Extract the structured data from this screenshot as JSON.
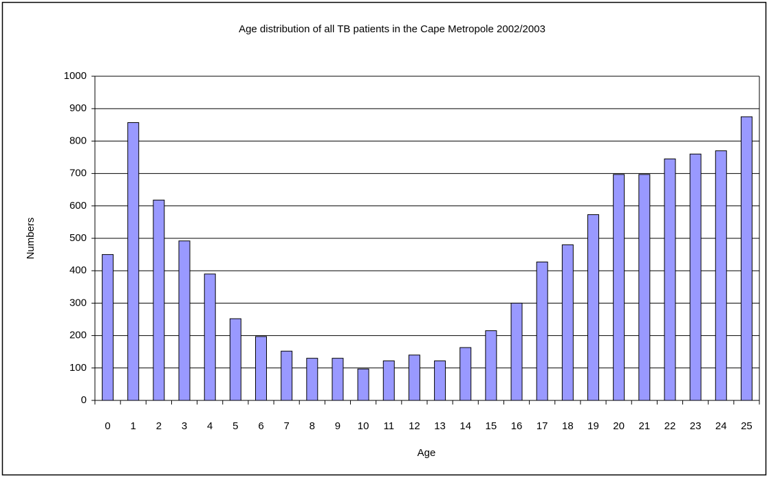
{
  "chart_data": {
    "type": "bar",
    "title": "Age distribution of all TB patients in the Cape Metropole 2002/2003",
    "x_label": "Age",
    "y_label": "Numbers",
    "categories": [
      "0",
      "1",
      "2",
      "3",
      "4",
      "5",
      "6",
      "7",
      "8",
      "9",
      "10",
      "11",
      "12",
      "13",
      "14",
      "15",
      "16",
      "17",
      "18",
      "19",
      "20",
      "21",
      "22",
      "23",
      "24",
      "25"
    ],
    "values": [
      450,
      857,
      618,
      492,
      390,
      252,
      197,
      152,
      130,
      130,
      97,
      122,
      140,
      122,
      163,
      215,
      300,
      427,
      480,
      573,
      697,
      697,
      745,
      760,
      770,
      875
    ],
    "color": "#9999ff",
    "ylim": [
      0,
      1000
    ],
    "yticks": [
      0,
      100,
      200,
      300,
      400,
      500,
      600,
      700,
      800,
      900,
      1000
    ],
    "grid": true
  }
}
